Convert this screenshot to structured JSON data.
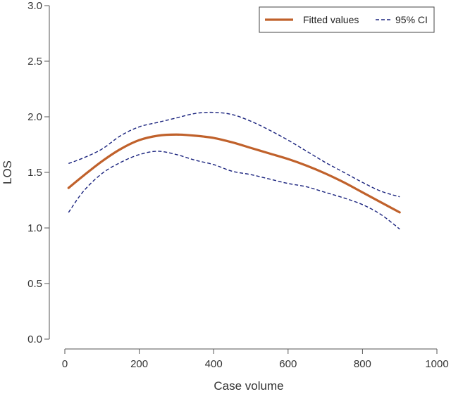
{
  "chart_data": {
    "type": "line",
    "title": "",
    "xlabel": "Case volume",
    "ylabel": "LOS",
    "xlim": [
      0,
      1000
    ],
    "ylim": [
      0,
      3
    ],
    "xticks": [
      0,
      200,
      400,
      600,
      800,
      1000
    ],
    "yticks": [
      0.0,
      0.5,
      1.0,
      1.5,
      2.0,
      2.5,
      3.0
    ],
    "xtick_labels": [
      "0",
      "200",
      "400",
      "600",
      "800",
      "1000"
    ],
    "ytick_labels": [
      "0.0",
      "0.5",
      "1.0",
      "1.5",
      "2.0",
      "2.5",
      "3.0"
    ],
    "grid": false,
    "legend_position": "top-right",
    "series": [
      {
        "name": "Fitted values",
        "style": "solid",
        "color": "#c0612b",
        "x": [
          10,
          50,
          100,
          150,
          200,
          250,
          300,
          350,
          400,
          450,
          500,
          550,
          600,
          650,
          700,
          750,
          800,
          850,
          900
        ],
        "y": [
          1.36,
          1.47,
          1.6,
          1.71,
          1.79,
          1.83,
          1.84,
          1.83,
          1.81,
          1.77,
          1.72,
          1.67,
          1.62,
          1.56,
          1.49,
          1.41,
          1.32,
          1.23,
          1.14
        ]
      },
      {
        "name": "95% CI",
        "style": "dashed",
        "color": "#1a237e",
        "x": [
          10,
          50,
          100,
          150,
          200,
          250,
          300,
          350,
          400,
          450,
          500,
          550,
          600,
          650,
          700,
          750,
          800,
          850,
          900
        ],
        "y": [
          1.58,
          1.63,
          1.71,
          1.83,
          1.91,
          1.95,
          1.99,
          2.03,
          2.04,
          2.02,
          1.96,
          1.88,
          1.79,
          1.69,
          1.59,
          1.5,
          1.41,
          1.33,
          1.28
        ]
      },
      {
        "name": "",
        "style": "dashed",
        "color": "#1a237e",
        "x": [
          10,
          50,
          100,
          150,
          200,
          250,
          300,
          350,
          400,
          450,
          500,
          550,
          600,
          650,
          700,
          750,
          800,
          850,
          900
        ],
        "y": [
          1.14,
          1.33,
          1.49,
          1.59,
          1.66,
          1.69,
          1.66,
          1.61,
          1.57,
          1.51,
          1.48,
          1.44,
          1.4,
          1.37,
          1.32,
          1.27,
          1.21,
          1.12,
          0.99
        ]
      }
    ],
    "legend": [
      {
        "label": "Fitted values",
        "style": "solid",
        "color": "#c0612b"
      },
      {
        "label": "95% CI",
        "style": "dashed",
        "color": "#1a237e"
      }
    ]
  }
}
